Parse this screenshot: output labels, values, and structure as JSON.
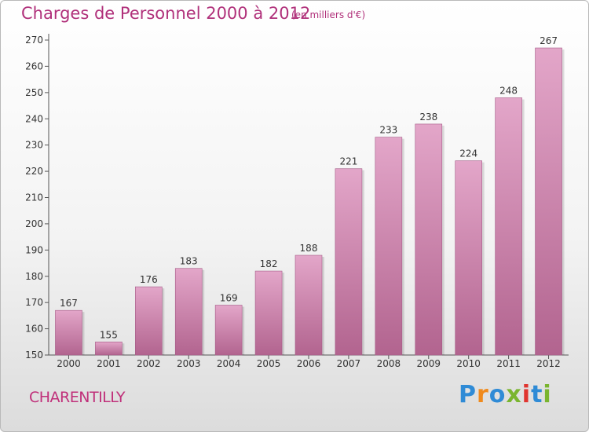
{
  "header": {
    "title": "Charges de Personnel 2000 à 2012",
    "subtitle": "(en milliers d'€)"
  },
  "footer": {
    "commune": "CHARENTILLY",
    "brand_letters": [
      "P",
      "r",
      "o",
      "x",
      "i",
      "t",
      "i"
    ],
    "brand_colors": [
      "#2f8bd6",
      "#f08a1c",
      "#2f8bd6",
      "#7ab52f",
      "#e0342f",
      "#2f8bd6",
      "#7ab52f"
    ]
  },
  "colors": {
    "bar_top": "#e3a6c9",
    "bar_bottom": "#b2648f",
    "text": "#333333",
    "accent": "#b0307a"
  },
  "chart_data": {
    "type": "bar",
    "categories": [
      "2000",
      "2001",
      "2002",
      "2003",
      "2004",
      "2005",
      "2006",
      "2007",
      "2008",
      "2009",
      "2010",
      "2011",
      "2012"
    ],
    "values": [
      167,
      155,
      176,
      183,
      169,
      182,
      188,
      221,
      233,
      238,
      224,
      248,
      267
    ],
    "ylim": [
      150,
      270
    ],
    "yticks": [
      150,
      160,
      170,
      180,
      190,
      200,
      210,
      220,
      230,
      240,
      250,
      260,
      270
    ],
    "grid": false,
    "data_labels": true
  }
}
